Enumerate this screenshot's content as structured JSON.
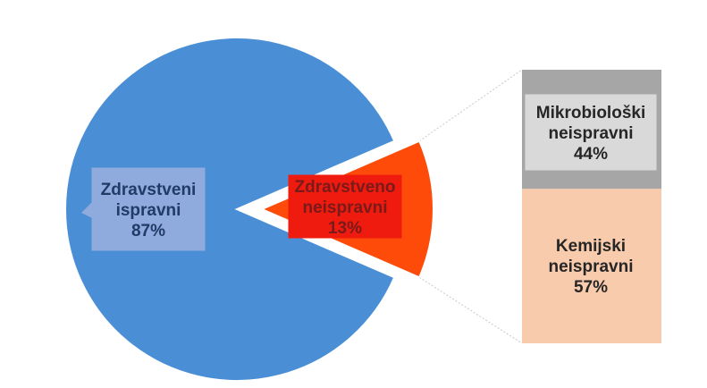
{
  "chart_data": {
    "type": "pie",
    "subtype": "bar-of-pie",
    "slices": [
      {
        "label_lines": [
          "Zdravstveni",
          "ispravni"
        ],
        "value": 87,
        "value_label": "87%",
        "color": "#4a8fd6",
        "label_bg": "#8faadc",
        "label_color": "#1f3b66"
      },
      {
        "label_lines": [
          "Zdravstveno",
          "neispravni"
        ],
        "value": 13,
        "value_label": "13%",
        "color": "#fe4b0a",
        "label_bg": "#ee1b0e",
        "label_color": "#7a1a1a",
        "exploded": true
      }
    ],
    "breakdown": {
      "of_slice": "Zdravstveno neispravni",
      "segments": [
        {
          "label_lines": [
            "Mikrobiološki",
            "neispravni"
          ],
          "value": 44,
          "value_label": "44%",
          "color": "#a6a6a6",
          "label_bg": "#d9d9d9",
          "label_color": "#262626"
        },
        {
          "label_lines": [
            "Kemijski",
            "neispravni"
          ],
          "value": 57,
          "value_label": "57%",
          "color": "#f8cbad",
          "label_bg": "#f8cbad",
          "label_color": "#262626"
        }
      ]
    },
    "legend": "none"
  }
}
